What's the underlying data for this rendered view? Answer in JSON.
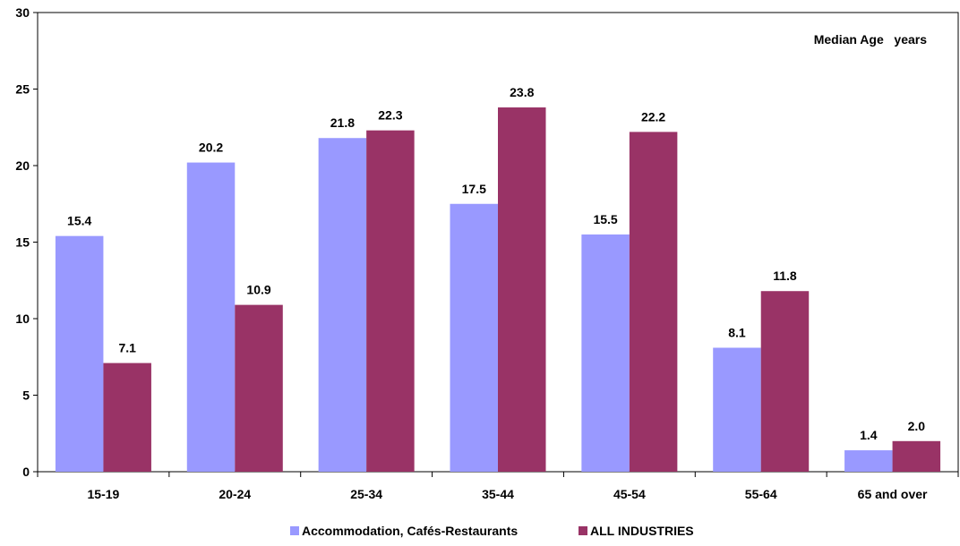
{
  "chart_data": {
    "type": "bar",
    "title": "",
    "xlabel": "",
    "ylabel": "",
    "annotation": "Median Age   years",
    "categories": [
      "15-19",
      "20-24",
      "25-34",
      "35-44",
      "45-54",
      "55-64",
      "65 and over"
    ],
    "series": [
      {
        "name": "Accommodation, Cafés-Restaurants",
        "color": "#9999FF",
        "values": [
          15.4,
          20.2,
          21.8,
          17.5,
          15.5,
          8.1,
          1.4
        ],
        "labels": [
          "15.4",
          "20.2",
          "21.8",
          "17.5",
          "15.5",
          "8.1",
          "1.4"
        ]
      },
      {
        "name": "ALL INDUSTRIES",
        "color": "#993366",
        "values": [
          7.1,
          10.9,
          22.3,
          23.8,
          22.2,
          11.8,
          2.0
        ],
        "labels": [
          "7.1",
          "10.9",
          "22.3",
          "23.8",
          "22.2",
          "11.8",
          "2.0"
        ]
      }
    ],
    "ylim": [
      0,
      30
    ],
    "yticks": [
      "0",
      "5",
      "10",
      "15",
      "20",
      "25",
      "30"
    ],
    "grid": false,
    "legend_position": "bottom"
  }
}
